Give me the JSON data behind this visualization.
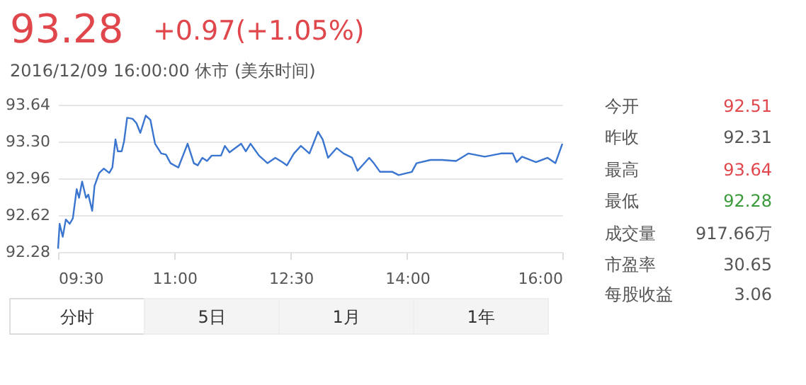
{
  "chart_data": {
    "type": "line",
    "title": "93.28",
    "annotations": [
      "+0.97(+1.05%)",
      "2016/12/09 16:00:00  休市 (美东时间)",
      "今开",
      "92.51",
      "昨收",
      "92.31",
      "最高",
      "93.64",
      "最低",
      "92.28",
      "成交量",
      "917.66万",
      "市盈率",
      "30.65",
      "每股收益",
      "3.06",
      "分时",
      "5日",
      "1月",
      "1年"
    ],
    "x": [
      9.5,
      9.52,
      9.56,
      9.6,
      9.65,
      9.69,
      9.74,
      9.77,
      9.81,
      9.86,
      9.89,
      9.94,
      9.97,
      10.03,
      10.09,
      10.16,
      10.2,
      10.24,
      10.27,
      10.32,
      10.35,
      10.39,
      10.46,
      10.51,
      10.56,
      10.63,
      10.69,
      10.75,
      10.83,
      10.89,
      10.95,
      11.05,
      11.17,
      11.25,
      11.3,
      11.36,
      11.42,
      11.48,
      11.6,
      11.65,
      11.71,
      11.86,
      11.92,
      11.98,
      12.09,
      12.2,
      12.3,
      12.39,
      12.45,
      12.54,
      12.63,
      12.74,
      12.85,
      12.91,
      12.98,
      13.09,
      13.18,
      13.29,
      13.36,
      13.51,
      13.57,
      13.65,
      13.81,
      13.89,
      14.06,
      14.12,
      14.3,
      14.45,
      14.63,
      14.79,
      15.0,
      15.21,
      15.36,
      15.41,
      15.48,
      15.66,
      15.81,
      15.91,
      16.0
    ],
    "series": [
      {
        "color": "#3a75d0",
        "values": [
          92.31,
          92.54,
          92.42,
          92.58,
          92.54,
          92.59,
          92.86,
          92.78,
          92.93,
          92.78,
          92.81,
          92.66,
          92.89,
          93.01,
          93.05,
          93.01,
          93.06,
          93.32,
          93.21,
          93.21,
          93.3,
          93.52,
          93.51,
          93.47,
          93.38,
          93.54,
          93.5,
          93.28,
          93.19,
          93.18,
          93.1,
          93.06,
          93.28,
          93.1,
          93.08,
          93.15,
          93.12,
          93.17,
          93.17,
          93.26,
          93.2,
          93.28,
          93.21,
          93.28,
          93.17,
          93.1,
          93.15,
          93.11,
          93.08,
          93.19,
          93.26,
          93.19,
          93.39,
          93.32,
          93.15,
          93.24,
          93.19,
          93.15,
          93.03,
          93.15,
          93.1,
          93.02,
          93.02,
          92.99,
          93.02,
          93.1,
          93.13,
          93.13,
          93.12,
          93.19,
          93.16,
          93.19,
          93.19,
          93.11,
          93.16,
          93.11,
          93.15,
          93.1,
          93.28
        ]
      }
    ],
    "xlim": [
      9.5,
      16
    ],
    "xticks": [
      {
        "value": 9.5,
        "label": "09:30"
      },
      {
        "value": 11,
        "label": "11:00"
      },
      {
        "value": 12.5,
        "label": "12:30"
      },
      {
        "value": 14,
        "label": "14:00"
      },
      {
        "value": 16,
        "label": "16:00"
      }
    ],
    "ylim": [
      92.28,
      93.64
    ],
    "yticks": [
      92.28,
      92.62,
      92.96,
      {
        "value": 93.3,
        "label": "93.30"
      },
      93.64
    ],
    "grid": "y",
    "marker": "none",
    "line_style": "solid"
  }
}
